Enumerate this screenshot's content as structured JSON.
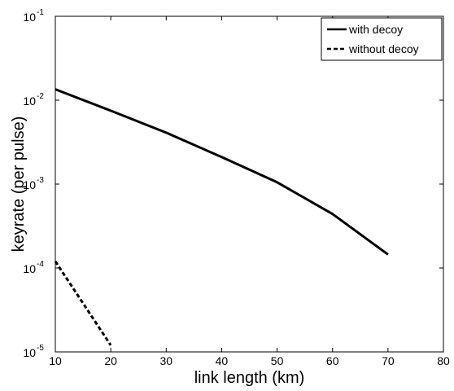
{
  "chart_data": {
    "type": "line",
    "title": "",
    "xlabel": "link length (km)",
    "ylabel": "keyrate (per pulse)",
    "xlim": [
      10,
      80
    ],
    "ylim": [
      1e-05,
      0.1
    ],
    "yscale": "log",
    "grid": false,
    "legend_position": "top-right",
    "x_ticks": [
      10,
      20,
      30,
      40,
      50,
      60,
      70,
      80
    ],
    "y_ticks": [
      {
        "value": 1e-05,
        "base": "10",
        "exp": "-5"
      },
      {
        "value": 0.0001,
        "base": "10",
        "exp": "-4"
      },
      {
        "value": 0.001,
        "base": "10",
        "exp": "-3"
      },
      {
        "value": 0.01,
        "base": "10",
        "exp": "-2"
      },
      {
        "value": 0.1,
        "base": "10",
        "exp": "-1"
      }
    ],
    "series": [
      {
        "name": "with decoy",
        "style": "solid",
        "color": "#000000",
        "x": [
          10,
          20,
          30,
          40,
          50,
          60,
          70
        ],
        "y": [
          0.0135,
          0.0075,
          0.0041,
          0.0021,
          0.00105,
          0.00044,
          0.000145
        ]
      },
      {
        "name": "without decoy",
        "style": "dashed",
        "color": "#000000",
        "x": [
          10,
          20
        ],
        "y": [
          0.00012,
          1.2e-05
        ]
      }
    ]
  }
}
